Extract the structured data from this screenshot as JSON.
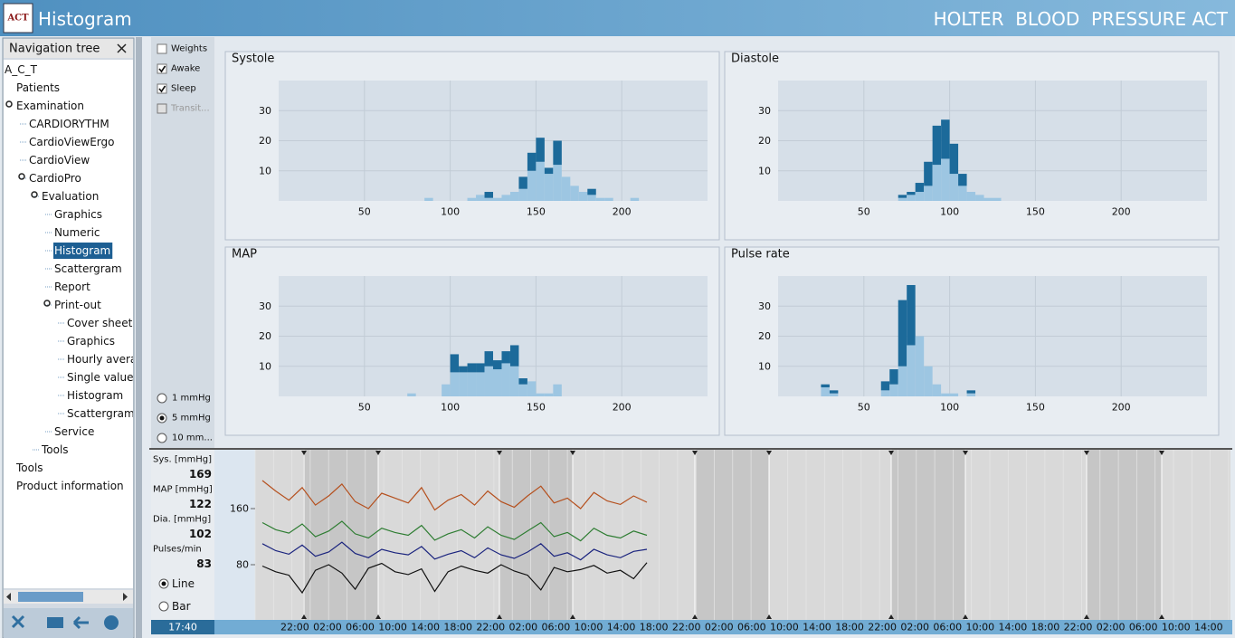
{
  "header": {
    "logo": "ACT",
    "title": "Histogram",
    "product": "HOLTER  BLOOD  PRESSURE ACT"
  },
  "nav": {
    "title": "Navigation tree",
    "root": "A_C_T",
    "items": [
      {
        "label": "Patients",
        "depth": 0
      },
      {
        "label": "Examination",
        "depth": 0
      },
      {
        "label": "CARDIORYTHM",
        "depth": 1
      },
      {
        "label": "CardioViewErgo",
        "depth": 1
      },
      {
        "label": "CardioView",
        "depth": 1
      },
      {
        "label": "CardioPro",
        "depth": 1
      },
      {
        "label": "Evaluation",
        "depth": 2
      },
      {
        "label": "Graphics",
        "depth": 3
      },
      {
        "label": "Numeric",
        "depth": 3
      },
      {
        "label": "Histogram",
        "depth": 3,
        "selected": true
      },
      {
        "label": "Scattergram",
        "depth": 3
      },
      {
        "label": "Report",
        "depth": 3
      },
      {
        "label": "Print-out",
        "depth": 3
      },
      {
        "label": "Cover sheet",
        "depth": 4
      },
      {
        "label": "Graphics",
        "depth": 4
      },
      {
        "label": "Hourly avera",
        "depth": 4
      },
      {
        "label": "Single value",
        "depth": 4
      },
      {
        "label": "Histogram",
        "depth": 4
      },
      {
        "label": "Scattergram",
        "depth": 4
      },
      {
        "label": "Service",
        "depth": 3
      },
      {
        "label": "Tools",
        "depth": 2
      },
      {
        "label": "Tools",
        "depth": 0
      },
      {
        "label": "Product information",
        "depth": 0
      }
    ]
  },
  "filters": [
    {
      "label": "Weights",
      "checked": false
    },
    {
      "label": "Awake",
      "checked": true
    },
    {
      "label": "Sleep",
      "checked": true
    },
    {
      "label": "Transit...",
      "checked": false,
      "disabled": true
    }
  ],
  "bin_sizes": [
    {
      "label": "1 mmHg",
      "selected": false
    },
    {
      "label": "5 mmHg",
      "selected": true
    },
    {
      "label": "10 mm...",
      "selected": false
    }
  ],
  "readouts": [
    {
      "label": "Sys. [mmHg]",
      "value": 169
    },
    {
      "label": "MAP [mmHg]",
      "value": 122
    },
    {
      "label": "Dia. [mmHg]",
      "value": 102
    },
    {
      "label": "Pulses/min",
      "value": 83
    }
  ],
  "view_modes": [
    {
      "label": "Line",
      "selected": true
    },
    {
      "label": "Bar",
      "selected": false
    }
  ],
  "time": "17:40",
  "chart_data": [
    {
      "type": "histogram",
      "title": "Systole",
      "bins": [
        85,
        90,
        95,
        100,
        105,
        110,
        115,
        120,
        125,
        130,
        135,
        140,
        145,
        150,
        155,
        160,
        165,
        170,
        175,
        180,
        185,
        190,
        195,
        200,
        205,
        210
      ],
      "series": [
        {
          "color": "#9dc6e2",
          "values": [
            1,
            0,
            0,
            0,
            0,
            1,
            2,
            1,
            1,
            2,
            3,
            4,
            10,
            13,
            9,
            12,
            8,
            5,
            3,
            2,
            1,
            1,
            0,
            0,
            1
          ]
        },
        {
          "color": "#1c6a9a",
          "values": [
            0,
            0,
            0,
            0,
            0,
            0,
            0,
            2,
            0,
            0,
            0,
            4,
            6,
            8,
            2,
            8,
            0,
            0,
            0,
            2,
            0,
            0,
            0,
            0,
            0
          ]
        }
      ],
      "xlim": [
        0,
        250
      ],
      "ylim": [
        0,
        40
      ],
      "xticks": [
        50,
        100,
        150,
        200
      ],
      "yticks": [
        10,
        20,
        30
      ],
      "grid": true
    },
    {
      "type": "histogram",
      "title": "Diastole",
      "bins": [
        70,
        75,
        80,
        85,
        90,
        95,
        100,
        105,
        110,
        115,
        120,
        125,
        130
      ],
      "series": [
        {
          "color": "#9dc6e2",
          "values": [
            1,
            2,
            3,
            5,
            12,
            14,
            9,
            5,
            3,
            2,
            1,
            1
          ]
        },
        {
          "color": "#1c6a9a",
          "values": [
            1,
            1,
            3,
            8,
            13,
            13,
            10,
            4,
            0,
            0,
            0,
            0
          ]
        }
      ],
      "xlim": [
        0,
        250
      ],
      "ylim": [
        0,
        40
      ],
      "xticks": [
        50,
        100,
        150,
        200
      ],
      "yticks": [
        10,
        20,
        30
      ],
      "grid": true
    },
    {
      "type": "histogram",
      "title": "MAP",
      "bins": [
        75,
        80,
        85,
        90,
        95,
        100,
        105,
        110,
        115,
        120,
        125,
        130,
        135,
        140,
        145,
        150,
        155,
        160,
        165
      ],
      "series": [
        {
          "color": "#9dc6e2",
          "values": [
            1,
            0,
            0,
            0,
            4,
            8,
            8,
            8,
            8,
            10,
            9,
            11,
            10,
            4,
            5,
            1,
            1,
            4
          ]
        },
        {
          "color": "#1c6a9a",
          "values": [
            0,
            0,
            0,
            0,
            0,
            6,
            2,
            3,
            3,
            5,
            3,
            4,
            7,
            2,
            0,
            0,
            0,
            0
          ]
        }
      ],
      "xlim": [
        0,
        250
      ],
      "ylim": [
        0,
        40
      ],
      "xticks": [
        50,
        100,
        150,
        200
      ],
      "yticks": [
        10,
        20,
        30
      ],
      "grid": true
    },
    {
      "type": "histogram",
      "title": "Pulse rate",
      "bins": [
        25,
        30,
        35,
        40,
        45,
        50,
        55,
        60,
        65,
        70,
        75,
        80,
        85,
        90,
        95,
        100,
        105,
        110,
        115
      ],
      "series": [
        {
          "color": "#9dc6e2",
          "values": [
            3,
            1,
            0,
            0,
            0,
            0,
            0,
            2,
            4,
            10,
            17,
            20,
            10,
            4,
            1,
            1,
            0,
            1
          ]
        },
        {
          "color": "#1c6a9a",
          "values": [
            1,
            1,
            0,
            0,
            0,
            0,
            0,
            3,
            5,
            22,
            20,
            0,
            0,
            0,
            0,
            0,
            0,
            1
          ]
        }
      ],
      "xlim": [
        0,
        250
      ],
      "ylim": [
        0,
        40
      ],
      "xticks": [
        50,
        100,
        150,
        200
      ],
      "yticks": [
        10,
        20,
        30
      ],
      "grid": true
    },
    {
      "type": "line",
      "ylim": [
        0,
        240
      ],
      "yticks": [
        80,
        160
      ],
      "time_labels": [
        "22:00",
        "02:00",
        "06:00",
        "10:00",
        "14:00",
        "18:00",
        "22:00",
        "02:00",
        "06:00",
        "10:00",
        "14:00",
        "18:00",
        "22:00",
        "02:00",
        "06:00",
        "10:00",
        "14:00",
        "18:00",
        "22:00",
        "02:00",
        "06:00",
        "10:00",
        "14:00",
        "18:00",
        "22:00",
        "02:00",
        "06:00",
        "10:00",
        "14:00"
      ],
      "series": [
        {
          "color": "#b5501e",
          "values": [
            200,
            185,
            172,
            190,
            165,
            178,
            195,
            170,
            160,
            182,
            175,
            168,
            190,
            158,
            172,
            180,
            165,
            185,
            170,
            162,
            178,
            192,
            168,
            175,
            160,
            183,
            171,
            166,
            178,
            169
          ]
        },
        {
          "color": "#2e7d32",
          "values": [
            140,
            130,
            125,
            138,
            120,
            128,
            142,
            124,
            118,
            132,
            126,
            122,
            136,
            115,
            124,
            130,
            118,
            134,
            122,
            116,
            128,
            140,
            120,
            126,
            114,
            132,
            122,
            118,
            128,
            122
          ]
        },
        {
          "color": "#1a237e",
          "values": [
            110,
            100,
            95,
            108,
            92,
            98,
            112,
            96,
            90,
            102,
            97,
            94,
            106,
            88,
            95,
            100,
            90,
            104,
            94,
            89,
            98,
            110,
            92,
            97,
            87,
            102,
            94,
            90,
            99,
            102
          ]
        },
        {
          "color": "#111111",
          "values": [
            78,
            70,
            65,
            40,
            72,
            80,
            68,
            45,
            75,
            82,
            70,
            66,
            74,
            42,
            70,
            78,
            72,
            68,
            80,
            71,
            65,
            44,
            76,
            70,
            73,
            79,
            68,
            72,
            60,
            83
          ]
        }
      ]
    }
  ]
}
